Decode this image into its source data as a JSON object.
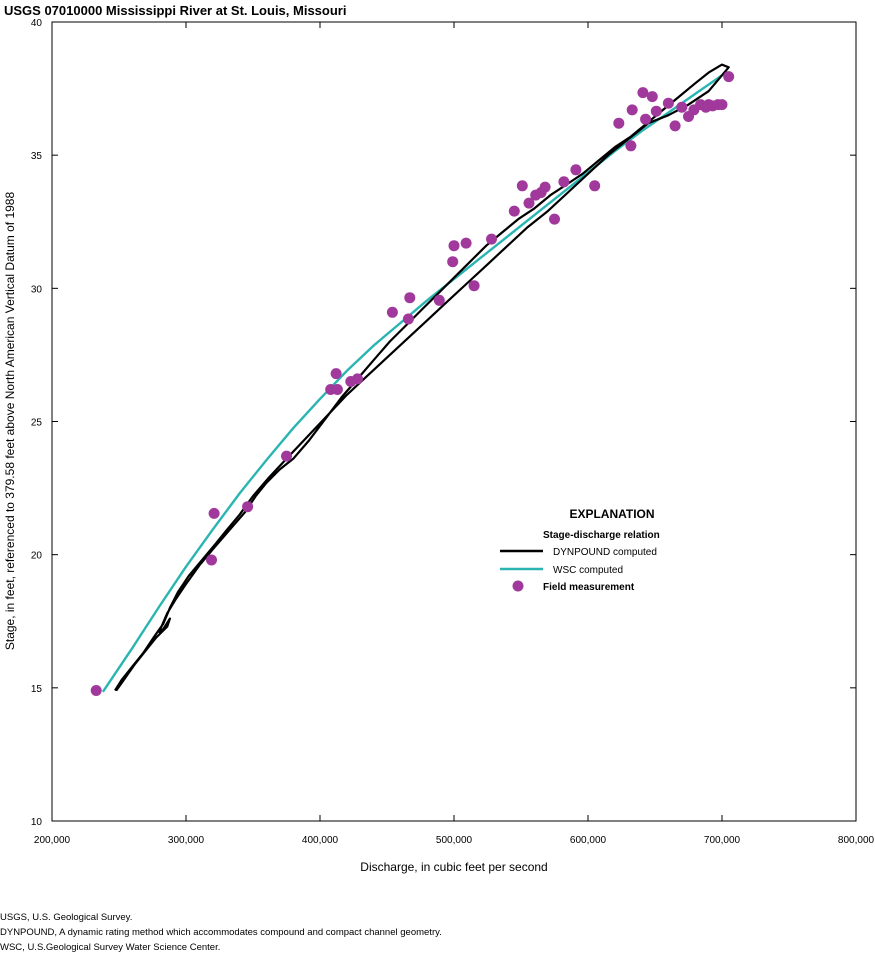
{
  "chart_data": {
    "type": "scatter",
    "title": "USGS 07010000 Mississippi River at St. Louis, Missouri",
    "xlabel": "Discharge, in cubic feet per second",
    "ylabel": "Stage, in feet, referenced to 379.58 feet above North American Vertical Datum of 1988",
    "xlim": [
      200000,
      800000
    ],
    "ylim": [
      10,
      40
    ],
    "x_ticks": [
      200000,
      300000,
      400000,
      500000,
      600000,
      700000,
      800000
    ],
    "x_tick_labels": [
      "200,000",
      "300,000",
      "400,000",
      "500,000",
      "600,000",
      "700,000",
      "800,000"
    ],
    "y_ticks": [
      10,
      15,
      20,
      25,
      30,
      35,
      40
    ],
    "y_tick_labels": [
      "10",
      "15",
      "20",
      "25",
      "30",
      "35",
      "40"
    ],
    "legend": {
      "title": "EXPLANATION",
      "subtitle": "Stage-discharge relation",
      "position": "right",
      "entries": [
        {
          "label": "DYNPOUND computed",
          "style": "line",
          "color": "#000000"
        },
        {
          "label": "WSC computed",
          "style": "line",
          "color": "#2ab5b3"
        },
        {
          "label": "Field measurement",
          "style": "marker",
          "color": "#a0399b"
        }
      ]
    },
    "series": [
      {
        "name": "WSC computed",
        "type": "line",
        "color": "#2ab5b3",
        "x": [
          238000,
          260000,
          280000,
          300000,
          320000,
          340000,
          360000,
          380000,
          400000,
          420000,
          440000,
          460000,
          480000,
          500000,
          520000,
          540000,
          560000,
          580000,
          600000,
          620000,
          640000,
          660000,
          680000,
          700000
        ],
        "y": [
          14.85,
          16.5,
          18.05,
          19.55,
          20.95,
          22.3,
          23.55,
          24.75,
          25.85,
          26.9,
          27.85,
          28.7,
          29.55,
          30.35,
          31.15,
          31.95,
          32.75,
          33.55,
          34.35,
          35.15,
          35.9,
          36.6,
          37.3,
          38.0
        ]
      },
      {
        "name": "DYNPOUND computed",
        "type": "line",
        "color": "#000000",
        "x": [
          248000,
          255000,
          262000,
          270000,
          278000,
          286000,
          288000,
          283000,
          280000,
          286000,
          292000,
          300000,
          310000,
          320000,
          332000,
          344000,
          352000,
          360000,
          370000,
          380000,
          392000,
          404000,
          416000,
          428000,
          440000,
          452000,
          464000,
          476000,
          488000,
          500000,
          512000,
          524000,
          536000,
          548000,
          560000,
          572000,
          584000,
          596000,
          608000,
          620000,
          632000,
          644000,
          656000,
          668000,
          680000,
          690000,
          700000,
          705000,
          690000,
          675000,
          660000,
          645000,
          630000,
          615000,
          600000,
          585000,
          570000,
          555000,
          540000,
          525000,
          510000,
          495000,
          480000,
          465000,
          450000,
          435000,
          420000,
          405000,
          390000,
          375000,
          362000,
          350000,
          340000,
          330000,
          322000,
          312000,
          302000,
          294000,
          288000,
          283000,
          276000,
          268000,
          260000,
          252000,
          247000
        ],
        "y": [
          14.9,
          15.4,
          15.9,
          16.4,
          16.9,
          17.3,
          17.6,
          17.2,
          17.1,
          17.8,
          18.3,
          18.9,
          19.6,
          20.2,
          20.9,
          21.6,
          22.2,
          22.7,
          23.2,
          23.6,
          24.3,
          25.1,
          25.9,
          26.6,
          27.3,
          28.0,
          28.6,
          29.2,
          29.8,
          30.4,
          31.0,
          31.6,
          32.1,
          32.6,
          33.0,
          33.5,
          33.9,
          34.3,
          34.8,
          35.3,
          35.7,
          36.2,
          36.7,
          37.2,
          37.7,
          38.1,
          38.4,
          38.3,
          37.4,
          36.9,
          36.5,
          36.2,
          35.6,
          35.0,
          34.3,
          33.6,
          32.9,
          32.3,
          31.6,
          30.9,
          30.2,
          29.5,
          28.8,
          28.1,
          27.4,
          26.7,
          26.0,
          25.2,
          24.4,
          23.6,
          22.9,
          22.2,
          21.5,
          20.9,
          20.4,
          19.8,
          19.2,
          18.6,
          18.0,
          17.4,
          16.9,
          16.3,
          15.8,
          15.3,
          14.9
        ]
      },
      {
        "name": "Field measurement",
        "type": "scatter",
        "color": "#a0399b",
        "x": [
          233000,
          319000,
          321000,
          346000,
          375000,
          408000,
          412000,
          413000,
          423000,
          428000,
          454000,
          466000,
          467000,
          489000,
          499000,
          500000,
          509000,
          515000,
          528000,
          545000,
          551000,
          556000,
          561000,
          565000,
          568000,
          575000,
          582000,
          591000,
          605000,
          623000,
          632000,
          633000,
          641000,
          643000,
          648000,
          651000,
          660000,
          665000,
          670000,
          675000,
          679000,
          684000,
          688000,
          690000,
          693000,
          697000,
          700000,
          705000
        ],
        "y": [
          14.9,
          19.8,
          21.55,
          21.8,
          23.7,
          26.2,
          26.8,
          26.2,
          26.5,
          26.6,
          29.1,
          28.85,
          29.65,
          29.55,
          31.0,
          31.6,
          31.7,
          30.1,
          31.85,
          32.9,
          33.85,
          33.2,
          33.5,
          33.6,
          33.8,
          32.6,
          34.0,
          34.45,
          33.85,
          36.2,
          35.35,
          36.7,
          37.35,
          36.35,
          37.2,
          36.65,
          36.95,
          36.1,
          36.8,
          36.45,
          36.7,
          36.9,
          36.8,
          36.9,
          36.85,
          36.9,
          36.9,
          37.95
        ]
      }
    ]
  },
  "footnotes": [
    "USGS, U.S. Geological Survey.",
    "DYNPOUND, A dynamic rating method which accommodates compound and compact channel geometry.",
    "WSC, U.S.Geological Survey Water Science Center."
  ]
}
